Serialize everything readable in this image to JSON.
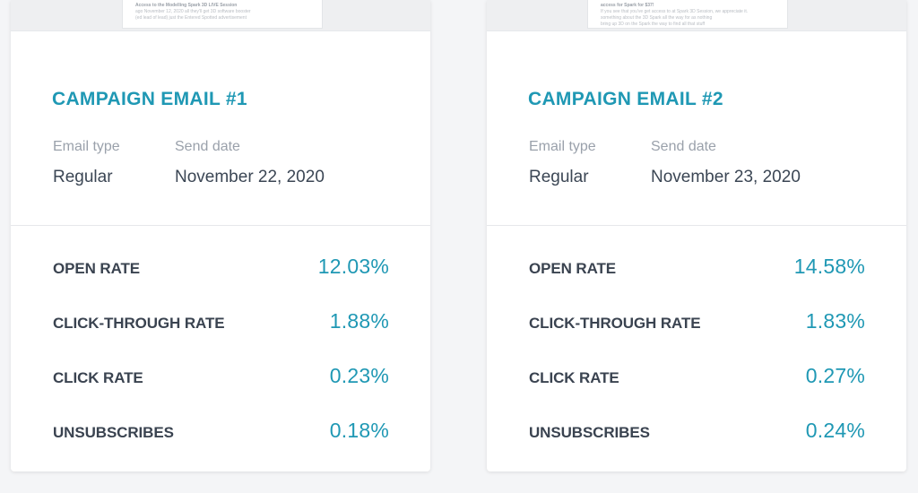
{
  "campaigns": [
    {
      "preview_lines": [
        "Access to the Modelling Spark 3D LIVE Session",
        "ago November 12, 2020 all they'll get 3D software booster",
        "(ed lead of lead) just the Entered Spotted advertisement"
      ],
      "title": "CAMPAIGN EMAIL #1",
      "email_type_label": "Email type",
      "email_type_value": "Regular",
      "send_date_label": "Send date",
      "send_date_value": "November 22, 2020",
      "stats": [
        {
          "label": "OPEN RATE",
          "value": "12.03%"
        },
        {
          "label": "CLICK-THROUGH RATE",
          "value": "1.88%"
        },
        {
          "label": "CLICK RATE",
          "value": "0.23%"
        },
        {
          "label": "UNSUBSCRIBES",
          "value": "0.18%"
        }
      ]
    },
    {
      "preview_lines": [
        "access for Spark for $37!",
        "",
        "If you see that you've get access to at Spark 3D Session, we appreciate it.",
        "something about the 3D Spark all the way for as nothing",
        "bring up 3D on the Spark the way to find all that stuff"
      ],
      "title": "CAMPAIGN EMAIL #2",
      "email_type_label": "Email type",
      "email_type_value": "Regular",
      "send_date_label": "Send date",
      "send_date_value": "November 23, 2020",
      "stats": [
        {
          "label": "OPEN RATE",
          "value": "14.58%"
        },
        {
          "label": "CLICK-THROUGH RATE",
          "value": "1.83%"
        },
        {
          "label": "CLICK RATE",
          "value": "0.27%"
        },
        {
          "label": "UNSUBSCRIBES",
          "value": "0.24%"
        }
      ]
    }
  ],
  "colors": {
    "accent": "#1f98b4",
    "label_dark": "#3a4350",
    "label_muted": "#9aa1ab",
    "background": "#f4f5f7"
  }
}
